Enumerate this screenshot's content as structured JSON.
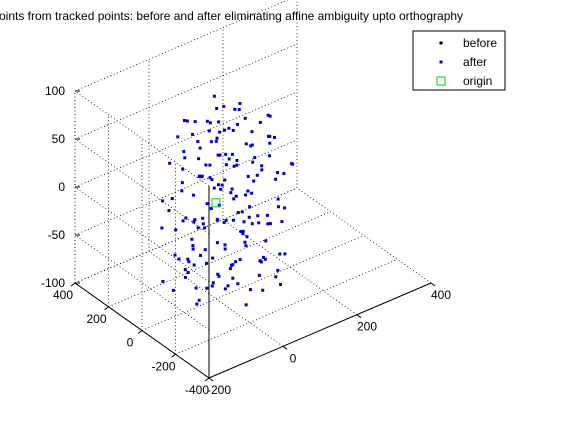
{
  "chart_data": {
    "type": "scatter",
    "projection": "3d",
    "title": "oints from tracked points: before and after eliminating affine ambiguity upto orthography",
    "xlabel": "",
    "ylabel": "",
    "zlabel": "",
    "xlim": [
      -200,
      400
    ],
    "ylim": [
      -400,
      400
    ],
    "zlim": [
      -100,
      100
    ],
    "x_ticks": [
      -200,
      0,
      200,
      400
    ],
    "y_ticks": [
      -400,
      -200,
      0,
      200,
      400
    ],
    "z_ticks": [
      -100,
      -50,
      0,
      50,
      100
    ],
    "x_tick_labels": [
      "-200",
      "0",
      "200",
      "400"
    ],
    "y_tick_labels": [
      "-400",
      "-200",
      "0",
      "200",
      "400"
    ],
    "z_tick_labels": [
      "-100",
      "-50",
      "0",
      "50",
      "100"
    ],
    "grid": true,
    "legend_position": "top-right",
    "legend": [
      {
        "label": "before",
        "marker": "dot",
        "color": "#000000"
      },
      {
        "label": "after",
        "marker": "dot",
        "color": "#0000cc"
      },
      {
        "label": "origin",
        "marker": "square",
        "color": "#00cc00"
      }
    ],
    "series": [
      {
        "name": "before",
        "color": "#000000",
        "points": []
      },
      {
        "name": "after",
        "color": "#0000cc",
        "points": [
          [
            20,
            40,
            90
          ],
          [
            60,
            20,
            85
          ],
          [
            40,
            -40,
            80
          ],
          [
            -20,
            80,
            78
          ],
          [
            90,
            60,
            75
          ],
          [
            10,
            0,
            72
          ],
          [
            70,
            -60,
            70
          ],
          [
            -40,
            20,
            68
          ],
          [
            30,
            100,
            66
          ],
          [
            120,
            0,
            64
          ],
          [
            -10,
            -80,
            62
          ],
          [
            50,
            60,
            60
          ],
          [
            100,
            -100,
            58
          ],
          [
            -60,
            60,
            56
          ],
          [
            0,
            140,
            54
          ],
          [
            80,
            100,
            52
          ],
          [
            140,
            -40,
            50
          ],
          [
            -30,
            -30,
            48
          ],
          [
            60,
            -140,
            46
          ],
          [
            20,
            20,
            44
          ],
          [
            -80,
            100,
            42
          ],
          [
            110,
            140,
            40
          ],
          [
            160,
            40,
            38
          ],
          [
            -50,
            -100,
            36
          ],
          [
            40,
            -20,
            34
          ],
          [
            0,
            60,
            32
          ],
          [
            90,
            -20,
            30
          ],
          [
            130,
            80,
            28
          ],
          [
            -20,
            -150,
            26
          ],
          [
            70,
            30,
            24
          ],
          [
            -70,
            -20,
            22
          ],
          [
            30,
            170,
            20
          ],
          [
            180,
            -60,
            18
          ],
          [
            -100,
            40,
            16
          ],
          [
            50,
            -80,
            14
          ],
          [
            10,
            110,
            12
          ],
          [
            150,
            100,
            10
          ],
          [
            -40,
            -60,
            8
          ],
          [
            100,
            -150,
            6
          ],
          [
            60,
            80,
            4
          ],
          [
            -90,
            120,
            2
          ],
          [
            0,
            -20,
            0
          ],
          [
            120,
            40,
            -2
          ],
          [
            -20,
            160,
            -4
          ],
          [
            170,
            20,
            -6
          ],
          [
            40,
            -110,
            -8
          ],
          [
            -60,
            0,
            -10
          ],
          [
            80,
            140,
            -12
          ],
          [
            20,
            -60,
            -14
          ],
          [
            140,
            -100,
            -16
          ],
          [
            -110,
            80,
            -18
          ],
          [
            60,
            0,
            -20
          ],
          [
            100,
            100,
            -22
          ],
          [
            -30,
            -120,
            -24
          ],
          [
            0,
            80,
            -26
          ],
          [
            160,
            -20,
            -28
          ],
          [
            -80,
            -40,
            -30
          ],
          [
            40,
            40,
            -32
          ],
          [
            120,
            -60,
            -34
          ],
          [
            -50,
            130,
            -36
          ],
          [
            80,
            -120,
            -38
          ],
          [
            20,
            120,
            -40
          ],
          [
            -100,
            0,
            -42
          ],
          [
            140,
            60,
            -44
          ],
          [
            60,
            -40,
            -46
          ],
          [
            -20,
            20,
            -48
          ],
          [
            100,
            -160,
            -50
          ],
          [
            0,
            -100,
            -52
          ],
          [
            -70,
            90,
            -54
          ],
          [
            130,
            120,
            -56
          ],
          [
            40,
            80,
            -58
          ],
          [
            -40,
            -160,
            -60
          ],
          [
            90,
            20,
            -62
          ],
          [
            -90,
            -80,
            -64
          ],
          [
            10,
            160,
            -66
          ],
          [
            150,
            -80,
            -68
          ],
          [
            -10,
            -40,
            -70
          ],
          [
            70,
            100,
            -72
          ],
          [
            -60,
            50,
            -74
          ],
          [
            110,
            -20,
            -76
          ],
          [
            30,
            -140,
            -78
          ],
          [
            -30,
            100,
            -80
          ],
          [
            80,
            60,
            -82
          ],
          [
            0,
            -180,
            -84
          ],
          [
            -80,
            140,
            -86
          ],
          [
            50,
            10,
            -88
          ],
          [
            120,
            -120,
            -90
          ],
          [
            -50,
            -10,
            -92
          ],
          [
            20,
            60,
            -94
          ],
          [
            90,
            -80,
            -96
          ],
          [
            -20,
            -60,
            95
          ],
          [
            50,
            120,
            88
          ],
          [
            110,
            -80,
            82
          ],
          [
            -70,
            -60,
            76
          ],
          [
            0,
            40,
            70
          ],
          [
            150,
            20,
            64
          ],
          [
            -40,
            140,
            58
          ],
          [
            80,
            -40,
            52
          ],
          [
            30,
            -180,
            46
          ],
          [
            -100,
            -20,
            40
          ],
          [
            60,
            160,
            34
          ],
          [
            120,
            -140,
            28
          ],
          [
            -10,
            60,
            22
          ],
          [
            90,
            120,
            16
          ],
          [
            -60,
            -140,
            10
          ],
          [
            40,
            0,
            4
          ],
          [
            160,
            80,
            -2
          ],
          [
            -80,
            20,
            -8
          ],
          [
            10,
            -140,
            -14
          ],
          [
            70,
            -100,
            -20
          ],
          [
            -30,
            40,
            -26
          ],
          [
            130,
            -20,
            -32
          ],
          [
            0,
            180,
            -38
          ],
          [
            -110,
            -60,
            -44
          ],
          [
            50,
            -160,
            -50
          ],
          [
            100,
            60,
            -56
          ],
          [
            -40,
            80,
            -62
          ],
          [
            80,
            -180,
            -68
          ],
          [
            -20,
            -100,
            -74
          ],
          [
            60,
            40,
            -80
          ],
          [
            140,
            -60,
            -86
          ],
          [
            -70,
            100,
            -92
          ],
          [
            30,
            20,
            93
          ],
          [
            -50,
            60,
            86
          ],
          [
            70,
            -20,
            79
          ],
          [
            110,
            100,
            73
          ],
          [
            -10,
            -120,
            67
          ],
          [
            40,
            140,
            61
          ],
          [
            -90,
            -100,
            55
          ],
          [
            90,
            -120,
            49
          ],
          [
            10,
            -40,
            43
          ],
          [
            -30,
            120,
            37
          ],
          [
            150,
            -120,
            31
          ],
          [
            60,
            -60,
            25
          ],
          [
            -60,
            -80,
            19
          ],
          [
            20,
            80,
            13
          ],
          [
            120,
            140,
            7
          ],
          [
            -100,
            60,
            1
          ],
          [
            80,
            0,
            -5
          ],
          [
            0,
            -60,
            -11
          ],
          [
            -40,
            -20,
            -17
          ],
          [
            100,
            20,
            -23
          ],
          [
            40,
            -60,
            -29
          ],
          [
            -80,
            -120,
            -35
          ],
          [
            160,
            -40,
            -41
          ],
          [
            -20,
            100,
            -47
          ],
          [
            70,
            -140,
            -53
          ],
          [
            -50,
            20,
            -59
          ],
          [
            120,
            80,
            -65
          ],
          [
            30,
            -20,
            -71
          ],
          [
            -10,
            140,
            -77
          ],
          [
            90,
            -60,
            -83
          ],
          [
            -70,
            -40,
            -89
          ],
          [
            50,
            100,
            -95
          ],
          [
            10,
            20,
            60
          ],
          [
            -20,
            -20,
            30
          ],
          [
            40,
            60,
            0
          ],
          [
            80,
            -40,
            -30
          ],
          [
            0,
            20,
            -60
          ],
          [
            60,
            -80,
            10
          ],
          [
            -60,
            -40,
            -40
          ],
          [
            100,
            40,
            40
          ],
          [
            -30,
            60,
            -20
          ],
          [
            130,
            -80,
            20
          ],
          [
            20,
            -100,
            -50
          ],
          [
            -40,
            100,
            80
          ],
          [
            70,
            140,
            -10
          ],
          [
            110,
            -40,
            -70
          ],
          [
            -90,
            0,
            50
          ],
          [
            50,
            -20,
            -90
          ],
          [
            0,
            100,
            15
          ],
          [
            140,
            0,
            -45
          ],
          [
            -20,
            -140,
            35
          ],
          [
            80,
            20,
            -25
          ],
          [
            30,
            60,
            55
          ],
          [
            -70,
            -100,
            -65
          ],
          [
            100,
            -100,
            65
          ],
          [
            -10,
            0,
            -85
          ],
          [
            60,
            120,
            25
          ],
          [
            -50,
            -120,
            5
          ]
        ]
      },
      {
        "name": "origin",
        "color": "#00cc00",
        "points": [
          [
            0,
            0,
            0
          ]
        ]
      }
    ]
  }
}
